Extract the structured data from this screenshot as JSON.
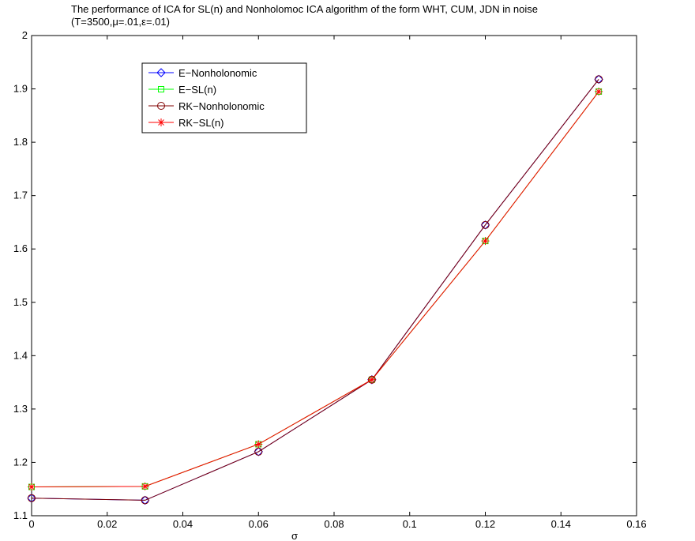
{
  "chart_data": {
    "type": "line",
    "title": "The performance of ICA for SL(n) and Nonholomoc ICA algorithm of the form WHT, CUM, JDN in noise",
    "subtitle": "(T=3500,μ=.01,ε=.01)",
    "xlabel": "σ",
    "ylabel": "",
    "xlim": [
      0,
      0.16
    ],
    "ylim": [
      1.1,
      2.0
    ],
    "xticks": [
      0,
      0.02,
      0.04,
      0.06,
      0.08,
      0.1,
      0.12,
      0.14,
      0.16
    ],
    "xtick_labels": [
      "0",
      "0.02",
      "0.04",
      "0.06",
      "0.08",
      "0.1",
      "0.12",
      "0.14",
      "0.16"
    ],
    "yticks": [
      1.1,
      1.2,
      1.3,
      1.4,
      1.5,
      1.6,
      1.7,
      1.8,
      1.9,
      2.0
    ],
    "ytick_labels": [
      "1.1",
      "1.2",
      "1.3",
      "1.4",
      "1.5",
      "1.6",
      "1.7",
      "1.8",
      "1.9",
      "2"
    ],
    "grid": false,
    "legend_position": "top-left",
    "x": [
      0,
      0.03,
      0.06,
      0.09,
      0.12,
      0.15
    ],
    "series": [
      {
        "name": "E−Nonholonomic",
        "marker": "diamond",
        "color": "#0000ff",
        "values": [
          1.133,
          1.129,
          1.22,
          1.355,
          1.645,
          1.918
        ]
      },
      {
        "name": "E−SL(n)",
        "marker": "square",
        "color": "#00ff00",
        "values": [
          1.154,
          1.155,
          1.234,
          1.355,
          1.615,
          1.895
        ]
      },
      {
        "name": "RK−Nonholonomic",
        "marker": "circle",
        "color": "#800000",
        "values": [
          1.133,
          1.129,
          1.22,
          1.355,
          1.645,
          1.918
        ]
      },
      {
        "name": "RK−SL(n)",
        "marker": "star",
        "color": "#ff0000",
        "values": [
          1.154,
          1.155,
          1.234,
          1.355,
          1.615,
          1.895
        ]
      }
    ]
  }
}
